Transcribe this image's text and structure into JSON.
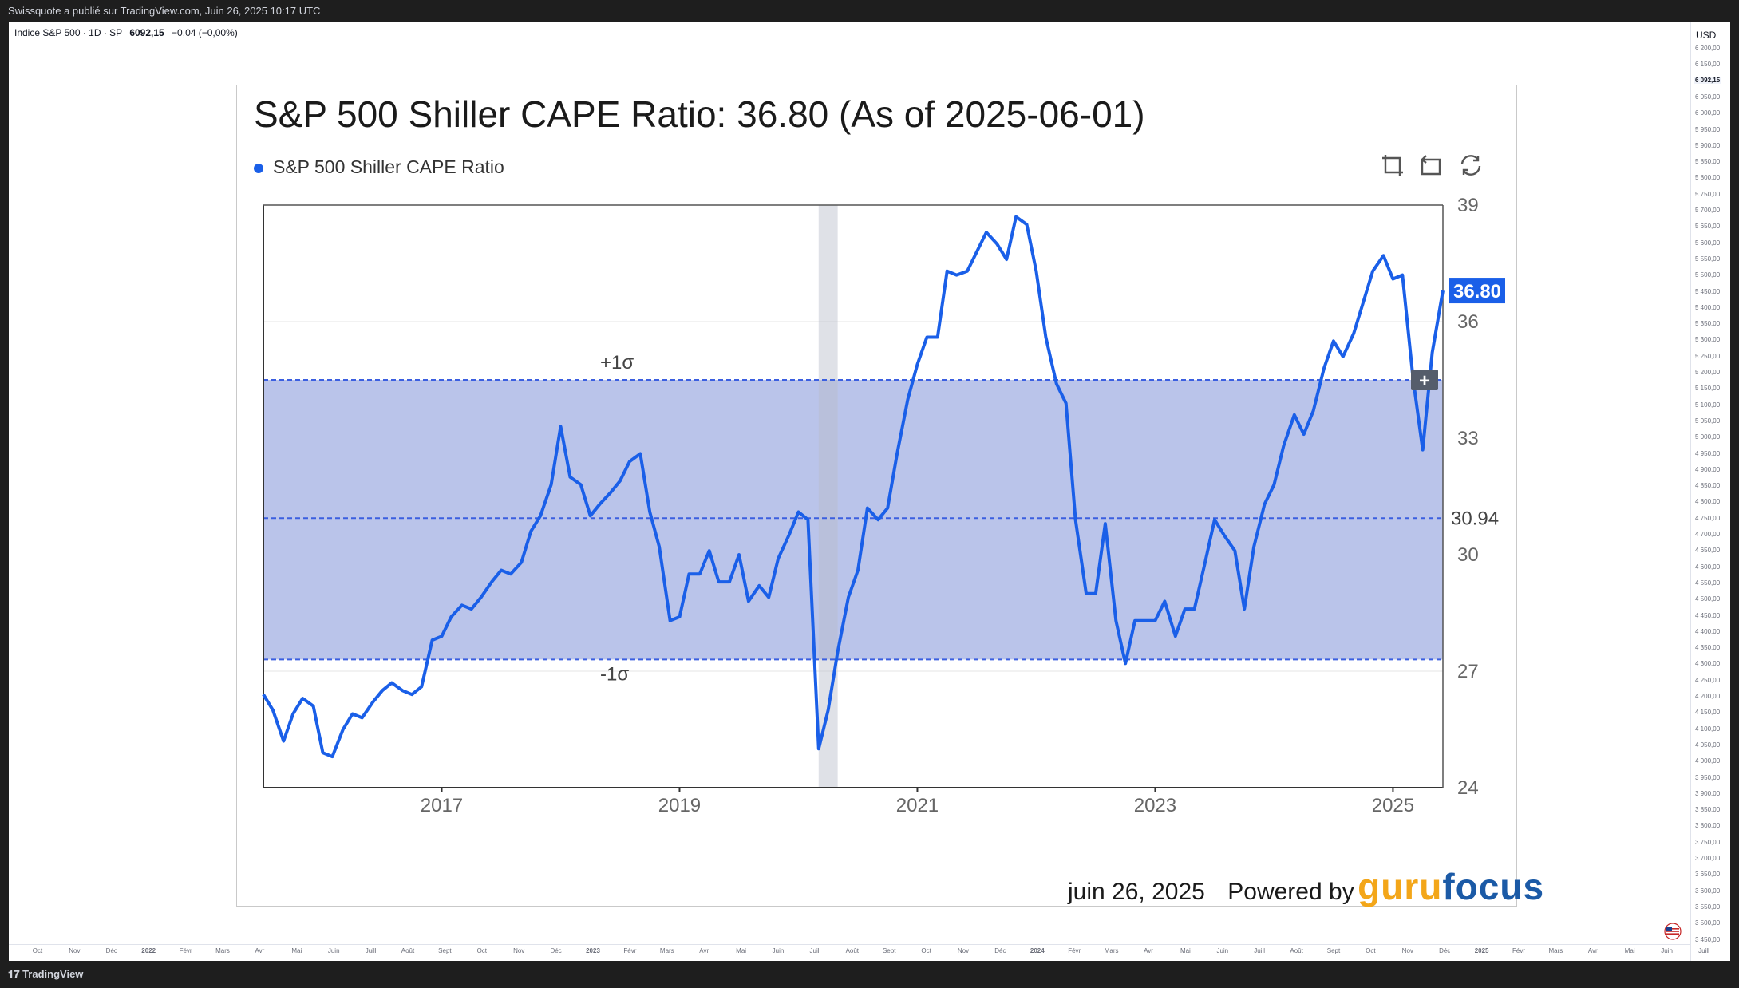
{
  "header": {
    "published_text": "Swissquote a publié sur TradingView.com, Juin 26, 2025 10:17 UTC"
  },
  "symbol_bar": {
    "name": "Indice S&P 500 · 1D · SP",
    "value": "6092,15",
    "change": "−0,04 (−0,00%)"
  },
  "price_axis": {
    "currency": "USD",
    "ticks": [
      "6 200,00",
      "6 150,00",
      "6 100,00",
      "6 050,00",
      "6 000,00",
      "5 950,00",
      "5 900,00",
      "5 850,00",
      "5 800,00",
      "5 750,00",
      "5 700,00",
      "5 650,00",
      "5 600,00",
      "5 550,00",
      "5 500,00",
      "5 450,00",
      "5 400,00",
      "5 350,00",
      "5 300,00",
      "5 250,00",
      "5 200,00",
      "5 150,00",
      "5 100,00",
      "5 050,00",
      "5 000,00",
      "4 950,00",
      "4 900,00",
      "4 850,00",
      "4 800,00",
      "4 750,00",
      "4 700,00",
      "4 650,00",
      "4 600,00",
      "4 550,00",
      "4 500,00",
      "4 450,00",
      "4 400,00",
      "4 350,00",
      "4 300,00",
      "4 250,00",
      "4 200,00",
      "4 150,00",
      "4 100,00",
      "4 050,00",
      "4 000,00",
      "3 950,00",
      "3 900,00",
      "3 850,00",
      "3 800,00",
      "3 750,00",
      "3 700,00",
      "3 650,00",
      "3 600,00",
      "3 550,00",
      "3 500,00",
      "3 450,00"
    ],
    "current_label": "6 092,15"
  },
  "time_axis": {
    "labels": [
      "Oct",
      "Nov",
      "Déc",
      "2022",
      "Févr",
      "Mars",
      "Avr",
      "Mai",
      "Juin",
      "Juill",
      "Août",
      "Sept",
      "Oct",
      "Nov",
      "Déc",
      "2023",
      "Févr",
      "Mars",
      "Avr",
      "Mai",
      "Juin",
      "Juill",
      "Août",
      "Sept",
      "Oct",
      "Nov",
      "Déc",
      "2024",
      "Févr",
      "Mars",
      "Avr",
      "Mai",
      "Juin",
      "Juill",
      "Août",
      "Sept",
      "Oct",
      "Nov",
      "Déc",
      "2025",
      "Févr",
      "Mars",
      "Avr",
      "Mai",
      "Juin",
      "Juill"
    ]
  },
  "footer_brand": "TradingView",
  "card": {
    "title": "S&P 500 Shiller CAPE Ratio: 36.80 (As of 2025-06-01)",
    "legend": "S&P 500 Shiller CAPE Ratio",
    "date": "juin 26, 2025",
    "powered": "Powered by",
    "brand_a": "guru",
    "brand_b": "focus"
  },
  "colors": {
    "line": "#1a5fe8",
    "band": "#bac4ea",
    "brand_a": "#f3a619",
    "brand_b": "#1b5aa6"
  },
  "chart_data": {
    "type": "line",
    "title": "S&P 500 Shiller CAPE Ratio: 36.80 (As of 2025-06-01)",
    "xlabel": "",
    "ylabel": "",
    "ylim": [
      24,
      39
    ],
    "xlim": [
      2015.5,
      2025.42
    ],
    "yticks": [
      24,
      27,
      30,
      33,
      36,
      39
    ],
    "xticks": [
      "2017",
      "2019",
      "2021",
      "2023",
      "2025"
    ],
    "mean_label": "30.94",
    "mean": 30.94,
    "plus_sigma": 34.5,
    "minus_sigma": 27.3,
    "plus_sigma_label": "+1σ",
    "minus_sigma_label": "-1σ",
    "last_value_label": "36.80",
    "recession": [
      2020.17,
      2020.33
    ],
    "series": [
      {
        "name": "S&P 500 Shiller CAPE Ratio",
        "x": [
          2015.5,
          2015.58,
          2015.67,
          2015.75,
          2015.83,
          2015.92,
          2016.0,
          2016.08,
          2016.17,
          2016.25,
          2016.33,
          2016.42,
          2016.5,
          2016.58,
          2016.67,
          2016.75,
          2016.83,
          2016.92,
          2017.0,
          2017.08,
          2017.17,
          2017.25,
          2017.33,
          2017.42,
          2017.5,
          2017.58,
          2017.67,
          2017.75,
          2017.83,
          2017.92,
          2018.0,
          2018.08,
          2018.17,
          2018.25,
          2018.33,
          2018.42,
          2018.5,
          2018.58,
          2018.67,
          2018.75,
          2018.83,
          2018.92,
          2019.0,
          2019.08,
          2019.17,
          2019.25,
          2019.33,
          2019.42,
          2019.5,
          2019.58,
          2019.67,
          2019.75,
          2019.83,
          2019.92,
          2020.0,
          2020.08,
          2020.17,
          2020.25,
          2020.33,
          2020.42,
          2020.5,
          2020.58,
          2020.67,
          2020.75,
          2020.83,
          2020.92,
          2021.0,
          2021.08,
          2021.17,
          2021.25,
          2021.33,
          2021.42,
          2021.5,
          2021.58,
          2021.67,
          2021.75,
          2021.83,
          2021.92,
          2022.0,
          2022.08,
          2022.17,
          2022.25,
          2022.33,
          2022.42,
          2022.5,
          2022.58,
          2022.67,
          2022.75,
          2022.83,
          2022.92,
          2023.0,
          2023.08,
          2023.17,
          2023.25,
          2023.33,
          2023.42,
          2023.5,
          2023.58,
          2023.67,
          2023.75,
          2023.83,
          2023.92,
          2024.0,
          2024.08,
          2024.17,
          2024.25,
          2024.33,
          2024.42,
          2024.5,
          2024.58,
          2024.67,
          2024.75,
          2024.83,
          2024.92,
          2025.0,
          2025.08,
          2025.17,
          2025.25,
          2025.33,
          2025.42
        ],
        "values": [
          26.4,
          26.0,
          25.2,
          25.9,
          26.3,
          26.1,
          24.9,
          24.8,
          25.5,
          25.9,
          25.8,
          26.2,
          26.5,
          26.7,
          26.5,
          26.4,
          26.6,
          27.8,
          27.9,
          28.4,
          28.7,
          28.6,
          28.9,
          29.3,
          29.6,
          29.5,
          29.8,
          30.6,
          31.0,
          31.8,
          33.3,
          32.0,
          31.8,
          31.0,
          31.3,
          31.6,
          31.9,
          32.4,
          32.6,
          31.1,
          30.2,
          28.3,
          28.4,
          29.5,
          29.5,
          30.1,
          29.3,
          29.3,
          30.0,
          28.8,
          29.2,
          28.9,
          29.9,
          30.5,
          31.1,
          30.9,
          25.0,
          26.0,
          27.5,
          28.9,
          29.6,
          31.2,
          30.9,
          31.2,
          32.6,
          34.0,
          34.9,
          35.6,
          35.6,
          37.3,
          37.2,
          37.3,
          37.8,
          38.3,
          38.0,
          37.6,
          38.7,
          38.5,
          37.3,
          35.6,
          34.4,
          33.9,
          30.9,
          29.0,
          29.0,
          30.8,
          28.3,
          27.2,
          28.3,
          28.3,
          28.3,
          28.8,
          27.9,
          28.6,
          28.6,
          29.8,
          30.9,
          30.5,
          30.1,
          28.6,
          30.2,
          31.3,
          31.8,
          32.8,
          33.6,
          33.1,
          33.7,
          34.8,
          35.5,
          35.1,
          35.7,
          36.5,
          37.3,
          37.7,
          37.1,
          37.2,
          34.5,
          32.7,
          35.2,
          36.8
        ]
      }
    ]
  }
}
